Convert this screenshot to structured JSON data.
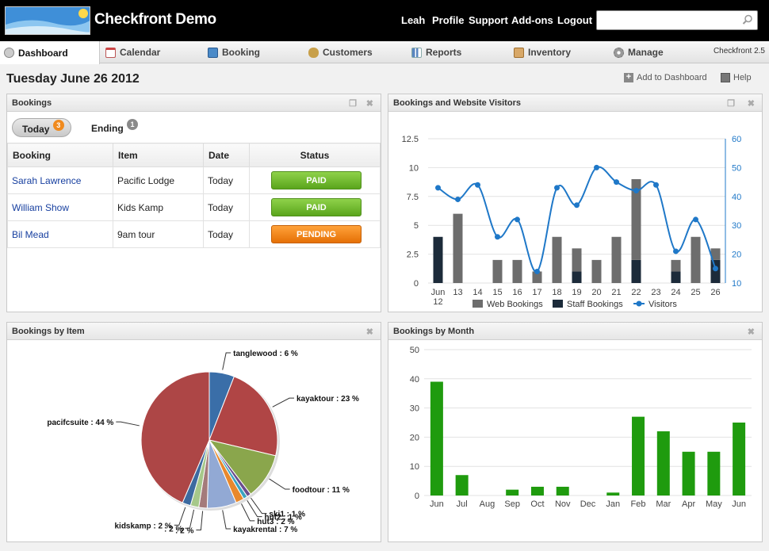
{
  "app": {
    "title": "Checkfront Demo",
    "version": "Checkfront 2.5"
  },
  "topnav": [
    {
      "label": "Leah"
    },
    {
      "label": "Profile"
    },
    {
      "label": "Support"
    },
    {
      "label": "Add-ons"
    },
    {
      "label": "Logout"
    }
  ],
  "search": {
    "value": "",
    "placeholder": ""
  },
  "tabs": [
    {
      "label": "Dashboard",
      "icon": "dashboard-icon",
      "active": true
    },
    {
      "label": "Calendar",
      "icon": "calendar-icon"
    },
    {
      "label": "Booking",
      "icon": "booking-icon"
    },
    {
      "label": "Customers",
      "icon": "customers-icon"
    },
    {
      "label": "Reports",
      "icon": "reports-icon"
    },
    {
      "label": "Inventory",
      "icon": "inventory-icon"
    },
    {
      "label": "Manage",
      "icon": "gear-icon"
    }
  ],
  "header": {
    "date": "Tuesday June 26 2012",
    "add_dashboard": "Add to Dashboard",
    "help": "Help"
  },
  "bookings_panel": {
    "title": "Bookings",
    "today_label": "Today",
    "today_count": "3",
    "ending_label": "Ending",
    "ending_count": "1",
    "columns": [
      "Booking",
      "Item",
      "Date",
      "Status"
    ],
    "rows": [
      {
        "name": "Sarah Lawrence",
        "item": "Pacific Lodge",
        "date": "Today",
        "status": "PAID"
      },
      {
        "name": "William Show",
        "item": "Kids Kamp",
        "date": "Today",
        "status": "PAID"
      },
      {
        "name": "Bil Mead",
        "item": "9am tour",
        "date": "Today",
        "status": "PENDING"
      }
    ],
    "colors": {
      "paid": "#6bb82c",
      "pending": "#f08a1e"
    }
  },
  "chart_data": [
    {
      "panel_title": "Bookings and Website Visitors",
      "type": "bar+line",
      "categories": [
        "Jun 12",
        "13",
        "14",
        "15",
        "16",
        "17",
        "18",
        "19",
        "20",
        "21",
        "22",
        "23",
        "24",
        "25",
        "26"
      ],
      "series": [
        {
          "name": "Web Bookings",
          "type": "bar",
          "color": "#6d6d6d",
          "values": [
            0,
            6,
            0,
            2,
            2,
            1,
            4,
            2,
            2,
            4,
            7,
            0,
            1,
            4,
            1
          ]
        },
        {
          "name": "Staff Bookings",
          "type": "bar",
          "color": "#1c2b3a",
          "values": [
            4,
            0,
            0,
            0,
            0,
            0,
            0,
            1,
            0,
            0,
            2,
            0,
            1,
            0,
            2
          ]
        },
        {
          "name": "Visitors",
          "type": "line",
          "axis": "right",
          "color": "#1f78c8",
          "values": [
            43,
            39,
            44,
            26,
            32,
            14,
            43,
            37,
            50,
            45,
            42,
            44,
            21,
            32,
            15
          ]
        }
      ],
      "yticks_left": [
        "0",
        "2.5",
        "5",
        "7.5",
        "10",
        "12.5"
      ],
      "yticks_right": [
        "10",
        "20",
        "30",
        "40",
        "50",
        "60"
      ],
      "ylim_left": [
        0,
        12.5
      ],
      "ylim_right": [
        10,
        60
      ],
      "legend": "bottom"
    },
    {
      "panel_title": "Bookings by Item",
      "type": "pie",
      "slices": [
        {
          "label": "tanglewood",
          "value": 6,
          "color": "#3a6ea8"
        },
        {
          "label": "kayaktour",
          "value": 23,
          "color": "#b04545"
        },
        {
          "label": "foodtour",
          "value": 11,
          "color": "#8aa64c"
        },
        {
          "label": "ski1",
          "value": 1,
          "color": "#6a4d8e"
        },
        {
          "label": "hut2",
          "value": 1,
          "color": "#3aa3c0"
        },
        {
          "label": "hut3",
          "value": 2,
          "color": "#e8882c"
        },
        {
          "label": "kayakrental",
          "value": 7,
          "color": "#92a9d4"
        },
        {
          "label": "",
          "value": 2,
          "color": "#a47b7b"
        },
        {
          "label": "",
          "value": 2,
          "color": "#a6c88a"
        },
        {
          "label": "kidskamp",
          "value": 2,
          "color": "#3c6aa0"
        },
        {
          "label": "pacifcsuite",
          "value": 44,
          "color": "#ad4646"
        }
      ]
    },
    {
      "panel_title": "Bookings by Month",
      "type": "bar",
      "categories": [
        "Jun",
        "Jul",
        "Aug",
        "Sep",
        "Oct",
        "Nov",
        "Dec",
        "Jan",
        "Feb",
        "Mar",
        "Apr",
        "May",
        "Jun"
      ],
      "values": [
        39,
        7,
        0,
        2,
        3,
        3,
        0,
        1,
        27,
        22,
        15,
        15,
        25
      ],
      "color": "#1f9b0e",
      "yticks": [
        "0",
        "10",
        "20",
        "30",
        "40",
        "50"
      ],
      "ylim": [
        0,
        50
      ]
    }
  ]
}
